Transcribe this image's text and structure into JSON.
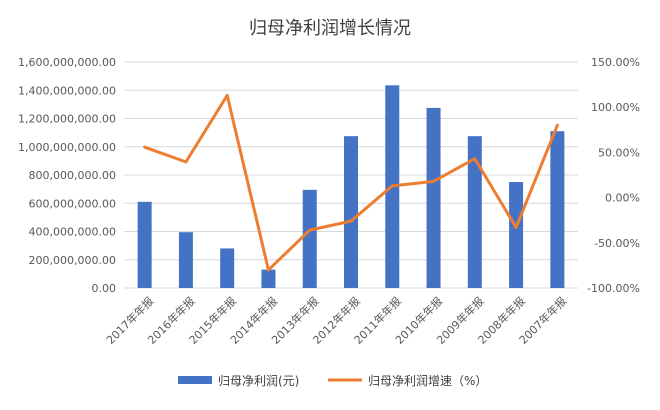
{
  "chart_data": {
    "type": "bar",
    "title": "归母净利润增长情况",
    "categories": [
      "2017年年报",
      "2016年年报",
      "2015年年报",
      "2014年年报",
      "2013年年报",
      "2012年年报",
      "2011年年报",
      "2010年年报",
      "2009年年报",
      "2008年年报",
      "2007年年报"
    ],
    "series": [
      {
        "name": "归母净利润(元)",
        "type": "bar",
        "axis": "left",
        "color": "#4472C4",
        "values": [
          610000000,
          395000000,
          280000000,
          130000000,
          695000000,
          1075000000,
          1435000000,
          1275000000,
          1075000000,
          750000000,
          1110000000
        ]
      },
      {
        "name": "归母净利润增速（%）",
        "type": "line",
        "axis": "right",
        "color": "#ED7D31",
        "values": [
          55.8,
          39.5,
          113.0,
          -80.0,
          -36.0,
          -26.0,
          13.0,
          18.0,
          43.0,
          -33.0,
          80.0
        ]
      }
    ],
    "y_left": {
      "ylim": [
        0,
        1600000000
      ],
      "ticks": [
        "0.00",
        "200,000,000.00",
        "400,000,000.00",
        "600,000,000.00",
        "800,000,000.00",
        "1,000,000,000.00",
        "1,200,000,000.00",
        "1,400,000,000.00",
        "1,600,000,000.00"
      ]
    },
    "y_right": {
      "ylim": [
        -100,
        150
      ],
      "ticks": [
        "-100.00%",
        "-50.00%",
        "0.00%",
        "50.00%",
        "100.00%",
        "150.00%"
      ]
    },
    "grid": true,
    "legend_position": "bottom"
  }
}
